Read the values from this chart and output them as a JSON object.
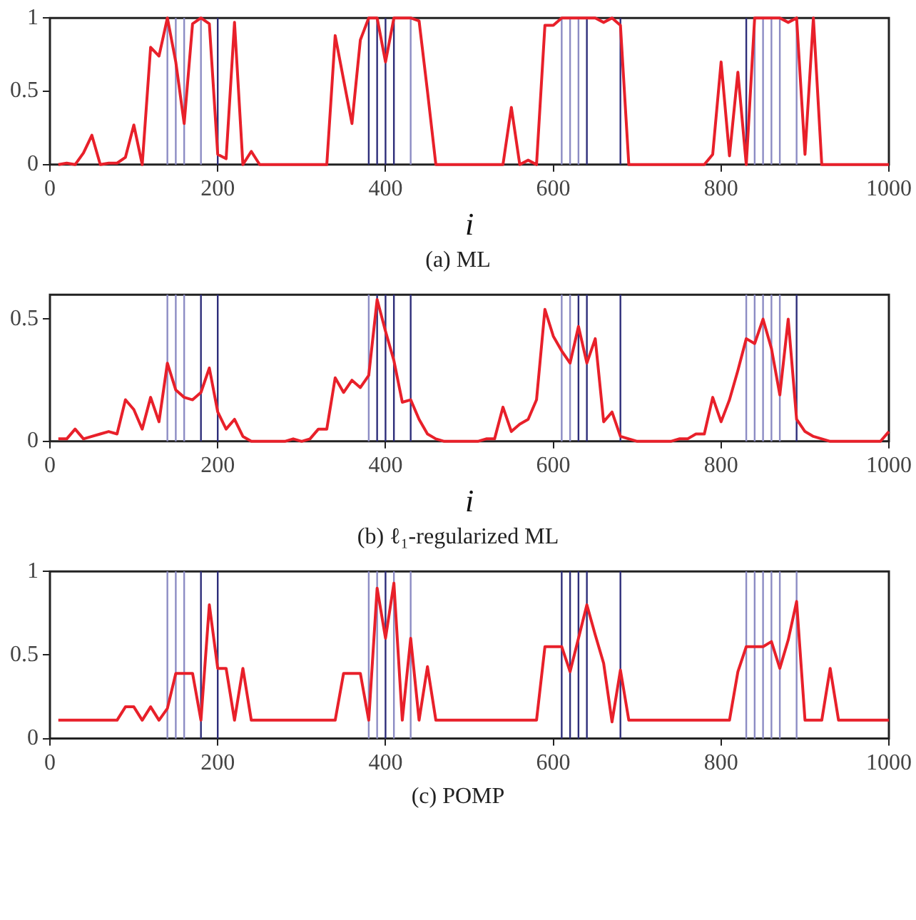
{
  "chart_data": [
    {
      "type": "line",
      "title": "(a) ML",
      "xlabel": "i",
      "x": [
        10,
        20,
        30,
        40,
        50,
        60,
        70,
        80,
        90,
        100,
        110,
        120,
        130,
        140,
        150,
        160,
        170,
        180,
        190,
        200,
        210,
        220,
        230,
        240,
        250,
        260,
        270,
        280,
        290,
        300,
        310,
        320,
        330,
        340,
        350,
        360,
        370,
        380,
        390,
        400,
        410,
        420,
        430,
        440,
        450,
        460,
        470,
        480,
        490,
        500,
        510,
        520,
        530,
        540,
        550,
        560,
        570,
        580,
        590,
        600,
        610,
        620,
        630,
        640,
        650,
        660,
        670,
        680,
        690,
        700,
        710,
        720,
        730,
        740,
        750,
        760,
        770,
        780,
        790,
        800,
        810,
        820,
        830,
        840,
        850,
        860,
        870,
        880,
        890,
        900,
        910,
        920,
        930,
        940,
        950,
        960,
        970,
        980,
        990,
        1000
      ],
      "series": [
        {
          "color": "#e8202a",
          "values": [
            0,
            0.01,
            0,
            0.08,
            0.2,
            0,
            0.01,
            0.01,
            0.05,
            0.27,
            0,
            0.8,
            0.74,
            1,
            0.7,
            0.28,
            0.96,
            1,
            0.96,
            0.07,
            0.04,
            0.97,
            0,
            0.09,
            0,
            0,
            0,
            0,
            0,
            0,
            0,
            0,
            0,
            0.88,
            0.58,
            0.28,
            0.85,
            1,
            1,
            0.7,
            1,
            1,
            1,
            0.98,
            0.5,
            0,
            0,
            0,
            0,
            0,
            0,
            0,
            0,
            0,
            0.39,
            0,
            0.03,
            0,
            0.95,
            0.95,
            1,
            1,
            1,
            1,
            1,
            0.97,
            1,
            0.95,
            0,
            0,
            0,
            0,
            0,
            0,
            0,
            0,
            0,
            0,
            0.07,
            0.7,
            0.06,
            0.63,
            0,
            1,
            1,
            1,
            1,
            0.97,
            1,
            0.07,
            1,
            0,
            0,
            0,
            0,
            0,
            0,
            0,
            0,
            0
          ]
        }
      ],
      "xlim": [
        0,
        1000
      ],
      "xticks": [
        0,
        200,
        400,
        600,
        800,
        1000
      ],
      "ylim": [
        0,
        1
      ],
      "yticks": [
        0,
        0.5,
        1
      ],
      "grid": false,
      "legend": false,
      "marker": "none",
      "line_style": "solid",
      "ref_lines": [
        {
          "axis": "x",
          "value": 140,
          "color": "#8c8cc4"
        },
        {
          "axis": "x",
          "value": 150,
          "color": "#8c8cc4"
        },
        {
          "axis": "x",
          "value": 160,
          "color": "#8c8cc4"
        },
        {
          "axis": "x",
          "value": 180,
          "color": "#8c8cc4"
        },
        {
          "axis": "x",
          "value": 200,
          "color": "#2e2e7a"
        },
        {
          "axis": "x",
          "value": 380,
          "color": "#2e2e7a"
        },
        {
          "axis": "x",
          "value": 390,
          "color": "#2e2e7a"
        },
        {
          "axis": "x",
          "value": 400,
          "color": "#2e2e7a"
        },
        {
          "axis": "x",
          "value": 410,
          "color": "#2e2e7a"
        },
        {
          "axis": "x",
          "value": 430,
          "color": "#8c8cc4"
        },
        {
          "axis": "x",
          "value": 610,
          "color": "#8c8cc4"
        },
        {
          "axis": "x",
          "value": 620,
          "color": "#8c8cc4"
        },
        {
          "axis": "x",
          "value": 630,
          "color": "#8c8cc4"
        },
        {
          "axis": "x",
          "value": 640,
          "color": "#2e2e7a"
        },
        {
          "axis": "x",
          "value": 680,
          "color": "#2e2e7a"
        },
        {
          "axis": "x",
          "value": 830,
          "color": "#2e2e7a"
        },
        {
          "axis": "x",
          "value": 840,
          "color": "#8c8cc4"
        },
        {
          "axis": "x",
          "value": 850,
          "color": "#8c8cc4"
        },
        {
          "axis": "x",
          "value": 860,
          "color": "#8c8cc4"
        },
        {
          "axis": "x",
          "value": 870,
          "color": "#8c8cc4"
        },
        {
          "axis": "x",
          "value": 890,
          "color": "#8c8cc4"
        }
      ]
    },
    {
      "type": "line",
      "title": "(b) ℓ₁-regularized ML",
      "xlabel": "i",
      "x": [
        10,
        20,
        30,
        40,
        50,
        60,
        70,
        80,
        90,
        100,
        110,
        120,
        130,
        140,
        150,
        160,
        170,
        180,
        190,
        200,
        210,
        220,
        230,
        240,
        250,
        260,
        270,
        280,
        290,
        300,
        310,
        320,
        330,
        340,
        350,
        360,
        370,
        380,
        390,
        400,
        410,
        420,
        430,
        440,
        450,
        460,
        470,
        480,
        490,
        500,
        510,
        520,
        530,
        540,
        550,
        560,
        570,
        580,
        590,
        600,
        610,
        620,
        630,
        640,
        650,
        660,
        670,
        680,
        690,
        700,
        710,
        720,
        730,
        740,
        750,
        760,
        770,
        780,
        790,
        800,
        810,
        820,
        830,
        840,
        850,
        860,
        870,
        880,
        890,
        900,
        910,
        920,
        930,
        940,
        950,
        960,
        970,
        980,
        990,
        1000
      ],
      "series": [
        {
          "color": "#e8202a",
          "values": [
            0.01,
            0.01,
            0.05,
            0.01,
            0.02,
            0.03,
            0.04,
            0.03,
            0.17,
            0.13,
            0.05,
            0.18,
            0.08,
            0.32,
            0.21,
            0.18,
            0.17,
            0.2,
            0.3,
            0.12,
            0.05,
            0.09,
            0.02,
            0,
            0,
            0,
            0,
            0,
            0.01,
            0,
            0.01,
            0.05,
            0.05,
            0.26,
            0.2,
            0.25,
            0.22,
            0.27,
            0.58,
            0.45,
            0.33,
            0.16,
            0.17,
            0.09,
            0.03,
            0.01,
            0,
            0,
            0,
            0,
            0,
            0.01,
            0.01,
            0.14,
            0.04,
            0.07,
            0.09,
            0.17,
            0.54,
            0.43,
            0.37,
            0.32,
            0.47,
            0.32,
            0.42,
            0.08,
            0.12,
            0.02,
            0.01,
            0,
            0,
            0,
            0,
            0,
            0.01,
            0.01,
            0.03,
            0.03,
            0.18,
            0.08,
            0.17,
            0.29,
            0.42,
            0.4,
            0.5,
            0.38,
            0.19,
            0.5,
            0.09,
            0.04,
            0.02,
            0.01,
            0,
            0,
            0,
            0,
            0,
            0,
            0,
            0.04
          ]
        }
      ],
      "xlim": [
        0,
        1000
      ],
      "xticks": [
        0,
        200,
        400,
        600,
        800,
        1000
      ],
      "ylim": [
        0,
        0.6
      ],
      "yticks": [
        0,
        0.5
      ],
      "grid": false,
      "legend": false,
      "marker": "none",
      "line_style": "solid",
      "ref_lines": [
        {
          "axis": "x",
          "value": 140,
          "color": "#8c8cc4"
        },
        {
          "axis": "x",
          "value": 150,
          "color": "#8c8cc4"
        },
        {
          "axis": "x",
          "value": 160,
          "color": "#8c8cc4"
        },
        {
          "axis": "x",
          "value": 180,
          "color": "#2e2e7a"
        },
        {
          "axis": "x",
          "value": 200,
          "color": "#2e2e7a"
        },
        {
          "axis": "x",
          "value": 380,
          "color": "#8c8cc4"
        },
        {
          "axis": "x",
          "value": 390,
          "color": "#2e2e7a"
        },
        {
          "axis": "x",
          "value": 400,
          "color": "#2e2e7a"
        },
        {
          "axis": "x",
          "value": 410,
          "color": "#2e2e7a"
        },
        {
          "axis": "x",
          "value": 430,
          "color": "#2e2e7a"
        },
        {
          "axis": "x",
          "value": 610,
          "color": "#8c8cc4"
        },
        {
          "axis": "x",
          "value": 620,
          "color": "#8c8cc4"
        },
        {
          "axis": "x",
          "value": 630,
          "color": "#2e2e7a"
        },
        {
          "axis": "x",
          "value": 640,
          "color": "#2e2e7a"
        },
        {
          "axis": "x",
          "value": 680,
          "color": "#2e2e7a"
        },
        {
          "axis": "x",
          "value": 830,
          "color": "#8c8cc4"
        },
        {
          "axis": "x",
          "value": 840,
          "color": "#8c8cc4"
        },
        {
          "axis": "x",
          "value": 850,
          "color": "#8c8cc4"
        },
        {
          "axis": "x",
          "value": 860,
          "color": "#8c8cc4"
        },
        {
          "axis": "x",
          "value": 870,
          "color": "#8c8cc4"
        },
        {
          "axis": "x",
          "value": 890,
          "color": "#2e2e7a"
        }
      ]
    },
    {
      "type": "line",
      "title": "(c) POMP",
      "x": [
        10,
        20,
        30,
        40,
        50,
        60,
        70,
        80,
        90,
        100,
        110,
        120,
        130,
        140,
        150,
        160,
        170,
        180,
        190,
        200,
        210,
        220,
        230,
        240,
        250,
        260,
        270,
        280,
        290,
        300,
        310,
        320,
        330,
        340,
        350,
        360,
        370,
        380,
        390,
        400,
        410,
        420,
        430,
        440,
        450,
        460,
        470,
        480,
        490,
        500,
        510,
        520,
        530,
        540,
        550,
        560,
        570,
        580,
        590,
        600,
        610,
        620,
        630,
        640,
        650,
        660,
        670,
        680,
        690,
        700,
        710,
        720,
        730,
        740,
        750,
        760,
        770,
        780,
        790,
        800,
        810,
        820,
        830,
        840,
        850,
        860,
        870,
        880,
        890,
        900,
        910,
        920,
        930,
        940,
        950,
        960,
        970,
        980,
        990,
        1000
      ],
      "series": [
        {
          "color": "#e8202a",
          "values": [
            0.11,
            0.11,
            0.11,
            0.11,
            0.11,
            0.11,
            0.11,
            0.11,
            0.19,
            0.19,
            0.11,
            0.19,
            0.11,
            0.18,
            0.39,
            0.39,
            0.39,
            0.11,
            0.8,
            0.42,
            0.42,
            0.11,
            0.42,
            0.11,
            0.11,
            0.11,
            0.11,
            0.11,
            0.11,
            0.11,
            0.11,
            0.11,
            0.11,
            0.11,
            0.39,
            0.39,
            0.39,
            0.11,
            0.9,
            0.6,
            0.93,
            0.11,
            0.6,
            0.11,
            0.43,
            0.11,
            0.11,
            0.11,
            0.11,
            0.11,
            0.11,
            0.11,
            0.11,
            0.11,
            0.11,
            0.11,
            0.11,
            0.11,
            0.55,
            0.55,
            0.55,
            0.4,
            0.6,
            0.8,
            0.62,
            0.45,
            0.1,
            0.41,
            0.11,
            0.11,
            0.11,
            0.11,
            0.11,
            0.11,
            0.11,
            0.11,
            0.11,
            0.11,
            0.11,
            0.11,
            0.11,
            0.4,
            0.55,
            0.55,
            0.55,
            0.58,
            0.42,
            0.59,
            0.82,
            0.11,
            0.11,
            0.11,
            0.42,
            0.11,
            0.11,
            0.11,
            0.11,
            0.11,
            0.11,
            0.11
          ]
        }
      ],
      "xlim": [
        0,
        1000
      ],
      "xticks": [
        0,
        200,
        400,
        600,
        800,
        1000
      ],
      "ylim": [
        0,
        1
      ],
      "yticks": [
        0,
        0.5,
        1
      ],
      "grid": false,
      "legend": false,
      "marker": "none",
      "line_style": "solid",
      "ref_lines": [
        {
          "axis": "x",
          "value": 140,
          "color": "#8c8cc4"
        },
        {
          "axis": "x",
          "value": 150,
          "color": "#8c8cc4"
        },
        {
          "axis": "x",
          "value": 160,
          "color": "#8c8cc4"
        },
        {
          "axis": "x",
          "value": 180,
          "color": "#2e2e7a"
        },
        {
          "axis": "x",
          "value": 200,
          "color": "#2e2e7a"
        },
        {
          "axis": "x",
          "value": 380,
          "color": "#8c8cc4"
        },
        {
          "axis": "x",
          "value": 390,
          "color": "#8c8cc4"
        },
        {
          "axis": "x",
          "value": 400,
          "color": "#2e2e7a"
        },
        {
          "axis": "x",
          "value": 410,
          "color": "#8c8cc4"
        },
        {
          "axis": "x",
          "value": 430,
          "color": "#8c8cc4"
        },
        {
          "axis": "x",
          "value": 610,
          "color": "#2e2e7a"
        },
        {
          "axis": "x",
          "value": 620,
          "color": "#2e2e7a"
        },
        {
          "axis": "x",
          "value": 630,
          "color": "#2e2e7a"
        },
        {
          "axis": "x",
          "value": 640,
          "color": "#2e2e7a"
        },
        {
          "axis": "x",
          "value": 680,
          "color": "#2e2e7a"
        },
        {
          "axis": "x",
          "value": 830,
          "color": "#8c8cc4"
        },
        {
          "axis": "x",
          "value": 840,
          "color": "#8c8cc4"
        },
        {
          "axis": "x",
          "value": 850,
          "color": "#8c8cc4"
        },
        {
          "axis": "x",
          "value": 860,
          "color": "#8c8cc4"
        },
        {
          "axis": "x",
          "value": 870,
          "color": "#8c8cc4"
        },
        {
          "axis": "x",
          "value": 890,
          "color": "#8c8cc4"
        }
      ]
    }
  ]
}
